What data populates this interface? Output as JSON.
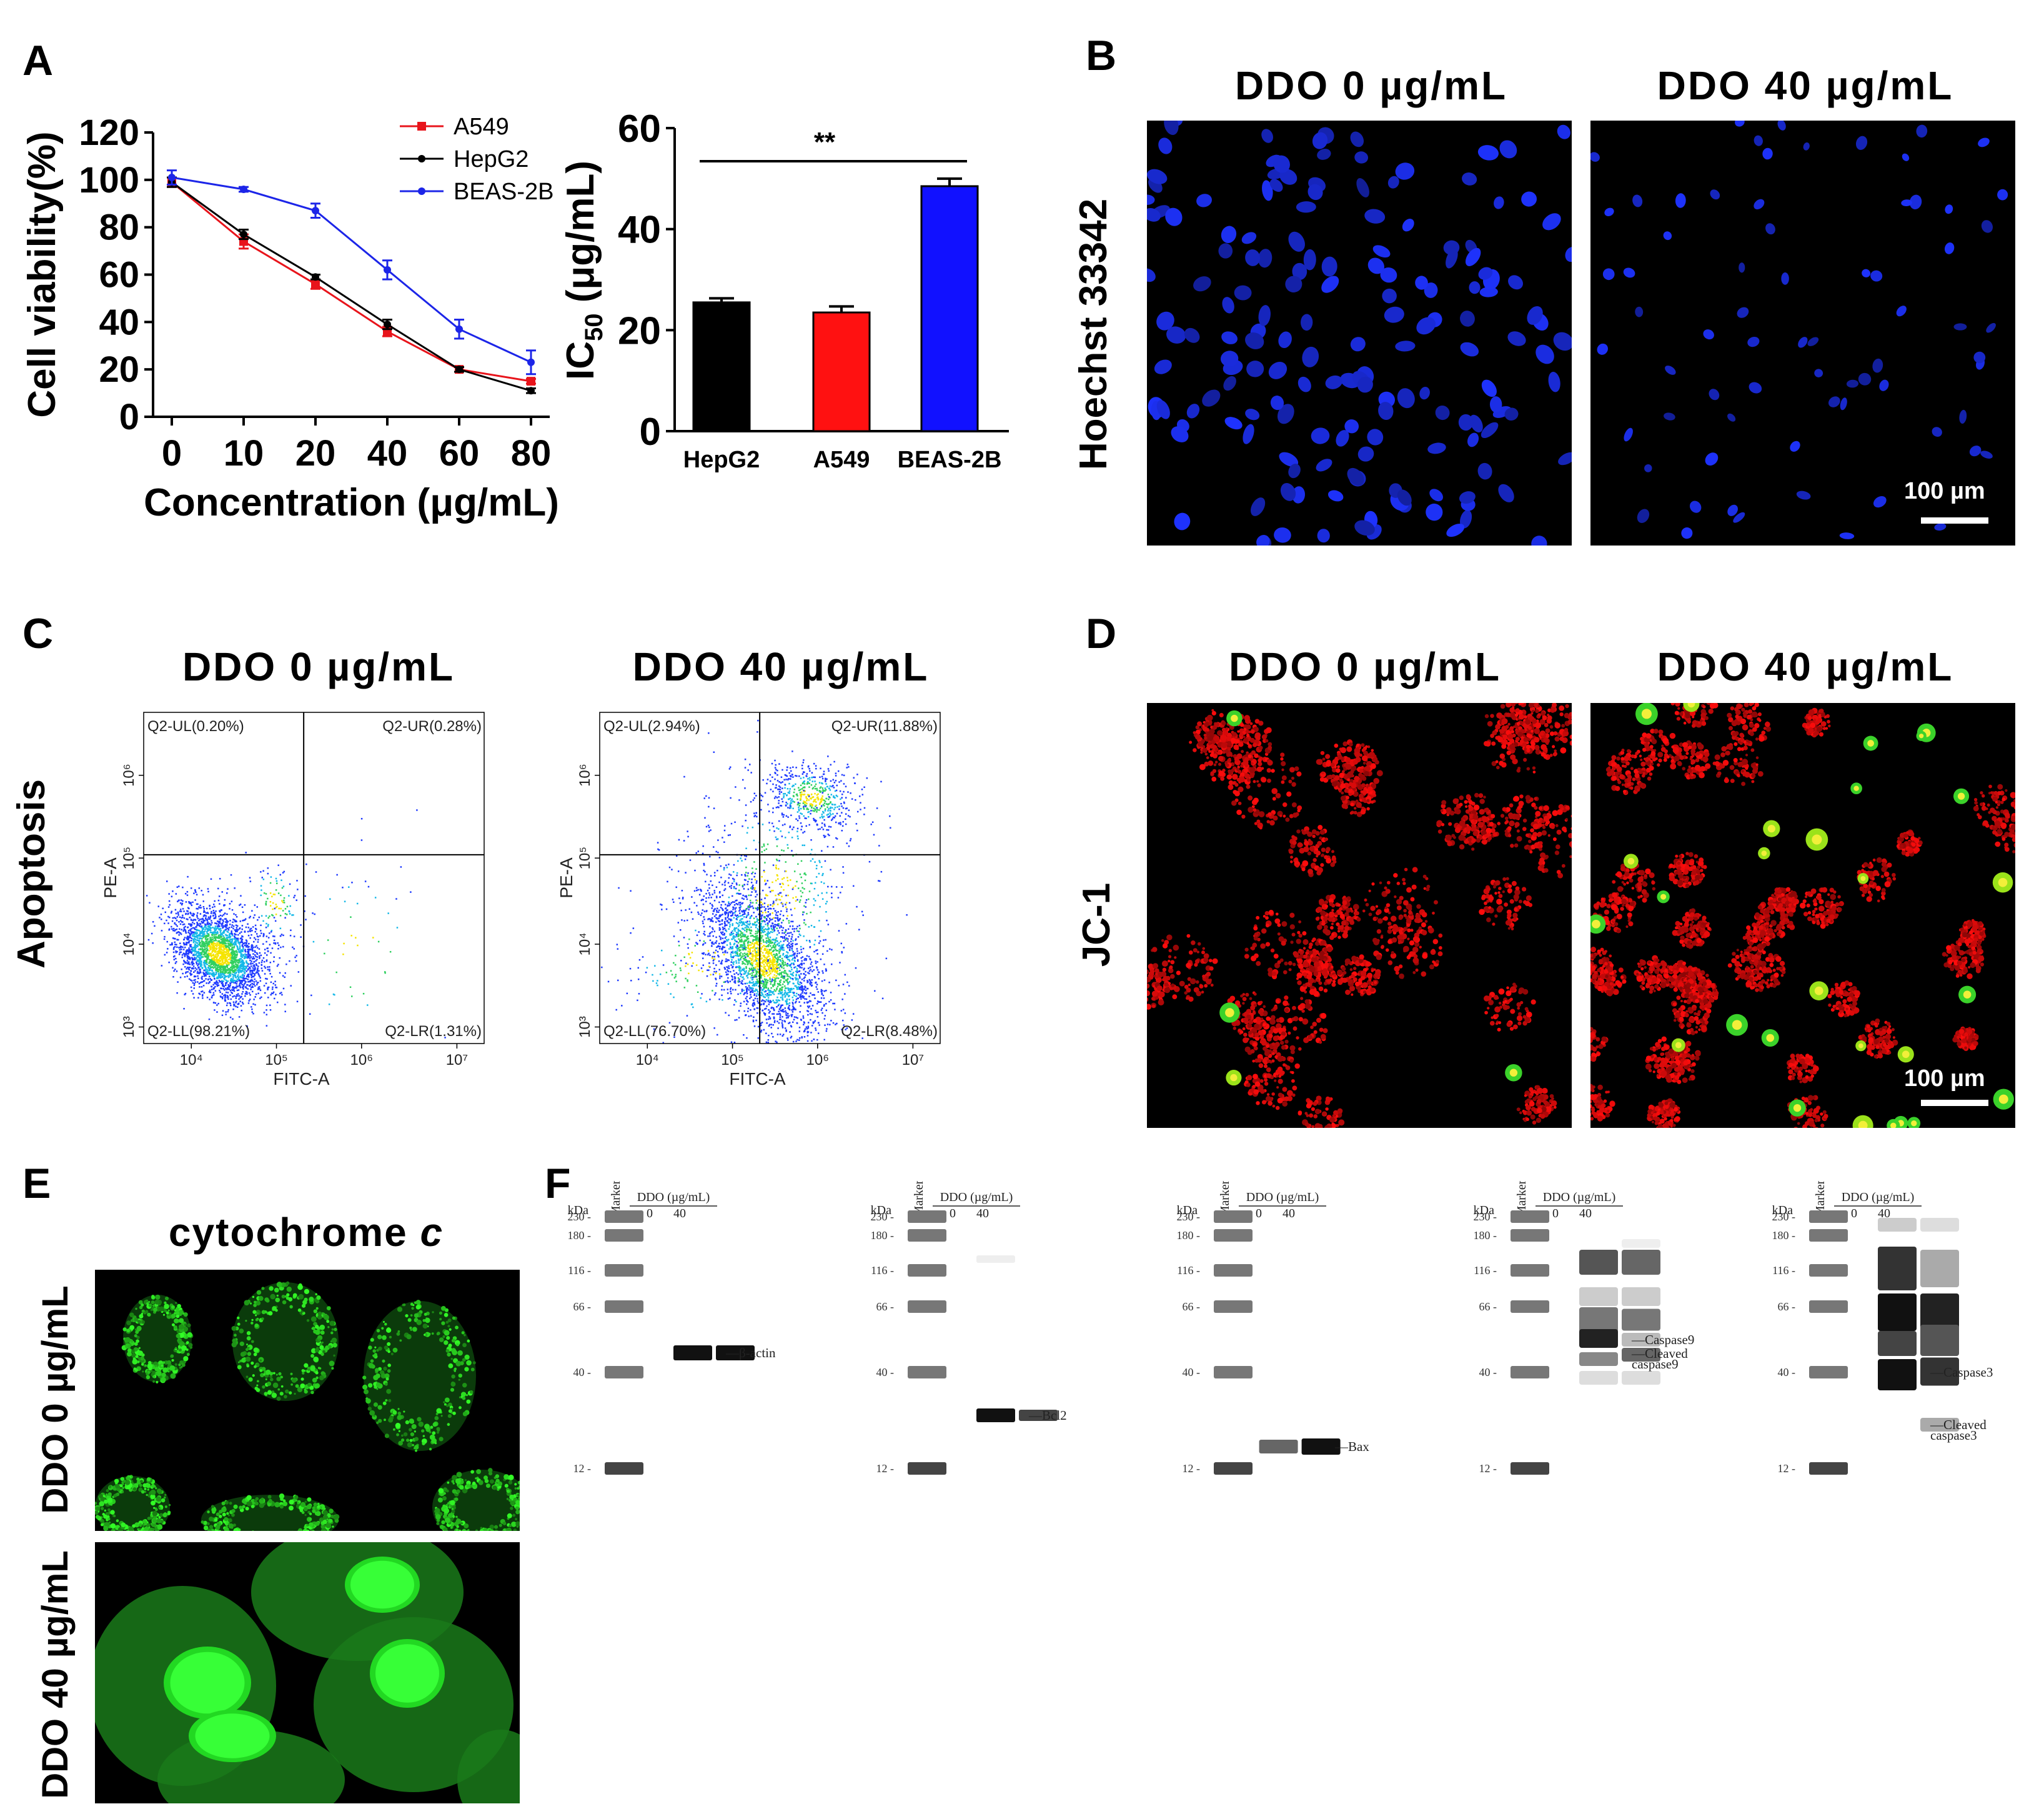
{
  "panels": {
    "a": "A",
    "b": "B",
    "c": "C",
    "d": "D",
    "e": "E",
    "f": "F"
  },
  "condition_labels": {
    "ddo0": "DDO 0 µg/mL",
    "ddo40": "DDO 40 µg/mL"
  },
  "panel_b": {
    "row_label": "Hoechst 33342",
    "scale_bar": "100 µm"
  },
  "panel_c": {
    "row_label": "Apoptosis",
    "x_axis_label": "FITC-A",
    "y_axis_label": "PE-A",
    "x_ticks": [
      "10⁴",
      "10⁵",
      "10⁶",
      "10⁷"
    ],
    "y_ticks": [
      "10³",
      "10⁴",
      "10⁵",
      "10⁶"
    ],
    "plot0_quadrants": {
      "ul": "Q2-UL(0.20%)",
      "ur": "Q2-UR(0.28%)",
      "ll": "Q2-LL(98.21%)",
      "lr": "Q2-LR(1.31%)"
    },
    "plot40_quadrants": {
      "ul": "Q2-UL(2.94%)",
      "ur": "Q2-UR(11.88%)",
      "ll": "Q2-LL(76.70%)",
      "lr": "Q2-LR(8.48%)"
    }
  },
  "panel_d": {
    "row_label": "JC-1",
    "scale_bar": "100 µm"
  },
  "panel_e": {
    "title": "cytochrome",
    "title_italic": "c",
    "row0": "DDO 0 µg/mL",
    "row40": "DDO 40 µg/mL"
  },
  "panel_f": {
    "kda": "kDa",
    "marker": "Marker",
    "ddo_header": "DDO (µg/mL)",
    "lane0": "0",
    "lane40": "40",
    "ladder_labels": [
      "230",
      "180",
      "116",
      "66",
      "40",
      "12"
    ],
    "blot_labels": {
      "bactin": "β-actin",
      "bcl2": "Bcl2",
      "bax": "Bax",
      "casp9": "Caspase9",
      "cleaved_casp9_1": "Cleaved",
      "cleaved_casp9_2": "caspase9",
      "casp3": "Caspase3",
      "cleaved_casp3_1": "Cleaved",
      "cleaved_casp3_2": "caspase3"
    }
  },
  "chart_data": [
    {
      "type": "line",
      "xlabel": "Concentration (μg/mL)",
      "ylabel": "Cell viability(%)",
      "categories": [
        "0",
        "10",
        "20",
        "40",
        "60",
        "80"
      ],
      "ylim": [
        0,
        120
      ],
      "yticks": [
        "0",
        "20",
        "40",
        "60",
        "80",
        "100",
        "120"
      ],
      "legend_position": "top-right",
      "series": [
        {
          "name": "A549",
          "color": "#e8141b",
          "values": [
            99,
            74,
            56,
            36,
            20,
            15
          ],
          "errors": [
            2,
            3,
            2,
            2,
            1,
            1
          ]
        },
        {
          "name": "HepG2",
          "color": "#000000",
          "values": [
            99,
            77,
            59,
            39,
            20,
            11
          ],
          "errors": [
            2,
            2,
            1,
            2,
            1,
            1
          ]
        },
        {
          "name": "BEAS-2B",
          "color": "#1c25e8",
          "values": [
            101,
            96,
            87,
            62,
            37,
            23
          ],
          "errors": [
            3,
            1,
            3,
            4,
            4,
            5
          ]
        }
      ]
    },
    {
      "type": "bar",
      "ylabel_main": "IC",
      "ylabel_sub": "50",
      "ylabel_rest": " (μg/mL)",
      "categories": [
        "HepG2",
        "A549",
        "BEAS-2B"
      ],
      "values": [
        25.5,
        23.5,
        48.5
      ],
      "errors": [
        0.8,
        1.2,
        1.5
      ],
      "colors": [
        "#000000",
        "#ff1111",
        "#1111ff"
      ],
      "ylim": [
        0,
        60
      ],
      "yticks": [
        "0",
        "20",
        "40",
        "60"
      ],
      "annotation": "**"
    }
  ]
}
